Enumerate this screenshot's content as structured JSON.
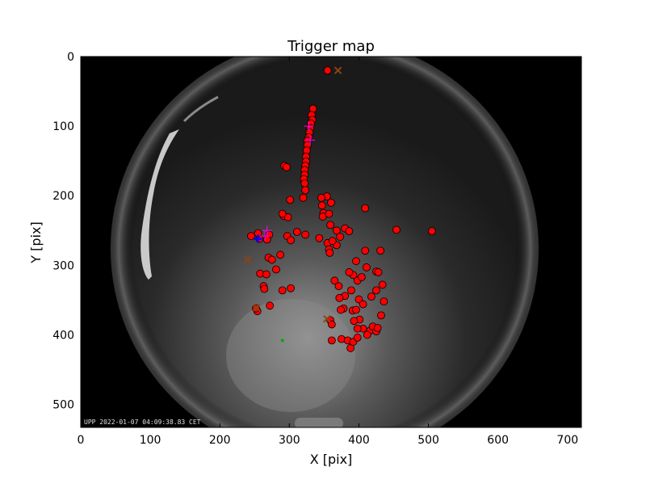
{
  "chart_data": {
    "type": "scatter",
    "title": "Trigger map",
    "xlabel": "X [pix]",
    "ylabel": "Y [pix]",
    "xlim": [
      0,
      720
    ],
    "ylim": [
      0,
      533
    ],
    "y_inverted": true,
    "grid": false,
    "xticks": [
      0,
      100,
      200,
      300,
      400,
      500,
      600,
      700
    ],
    "yticks": [
      0,
      100,
      200,
      300,
      400,
      500
    ],
    "background_image": "all-sky camera fisheye frame (grayscale)",
    "timestamp_caption": "UPP 2022-01-07 04:09:38.83 CET",
    "colors": {
      "trigger_point": "#ff0000",
      "outline": "#000000",
      "cross": "#8b4513",
      "green_dot": "#00aa00",
      "blue_marker": "#0000ff",
      "magenta_marker": "#ff00ff"
    },
    "series": [
      {
        "marker": "circle",
        "points": [
          [
            355,
            20
          ],
          [
            334,
            75
          ],
          [
            332,
            84
          ],
          [
            333,
            91
          ],
          [
            331,
            96
          ],
          [
            330,
            103
          ],
          [
            329,
            109
          ],
          [
            328,
            116
          ],
          [
            326,
            121
          ],
          [
            326,
            127
          ],
          [
            325,
            135
          ],
          [
            324,
            144
          ],
          [
            324,
            151
          ],
          [
            323,
            157
          ],
          [
            322,
            163
          ],
          [
            322,
            170
          ],
          [
            321,
            176
          ],
          [
            322,
            182
          ],
          [
            293,
            157
          ],
          [
            296,
            159
          ],
          [
            323,
            192
          ],
          [
            320,
            203
          ],
          [
            301,
            206
          ],
          [
            360,
            210
          ],
          [
            354,
            201
          ],
          [
            346,
            203
          ],
          [
            347,
            214
          ],
          [
            349,
            225
          ],
          [
            348,
            230
          ],
          [
            357,
            226
          ],
          [
            359,
            242
          ],
          [
            409,
            218
          ],
          [
            292,
            229
          ],
          [
            298,
            231
          ],
          [
            290,
            226
          ],
          [
            311,
            252
          ],
          [
            323,
            256
          ],
          [
            297,
            258
          ],
          [
            302,
            264
          ],
          [
            343,
            261
          ],
          [
            355,
            268
          ],
          [
            357,
            277
          ],
          [
            358,
            282
          ],
          [
            368,
            250
          ],
          [
            373,
            259
          ],
          [
            380,
            247
          ],
          [
            386,
            251
          ],
          [
            368,
            271
          ],
          [
            362,
            265
          ],
          [
            454,
            249
          ],
          [
            505,
            251
          ],
          [
            409,
            279
          ],
          [
            431,
            279
          ],
          [
            245,
            258
          ],
          [
            257,
            262
          ],
          [
            271,
            256
          ],
          [
            268,
            263
          ],
          [
            255,
            254
          ],
          [
            270,
            289
          ],
          [
            275,
            292
          ],
          [
            287,
            285
          ],
          [
            281,
            306
          ],
          [
            258,
            312
          ],
          [
            267,
            313
          ],
          [
            263,
            330
          ],
          [
            264,
            334
          ],
          [
            290,
            336
          ],
          [
            302,
            333
          ],
          [
            272,
            358
          ],
          [
            254,
            366
          ],
          [
            252,
            362
          ],
          [
            411,
            303
          ],
          [
            396,
            294
          ],
          [
            398,
            322
          ],
          [
            392,
            314
          ],
          [
            386,
            310
          ],
          [
            371,
            330
          ],
          [
            389,
            336
          ],
          [
            380,
            344
          ],
          [
            400,
            349
          ],
          [
            425,
            309
          ],
          [
            428,
            310
          ],
          [
            434,
            328
          ],
          [
            436,
            352
          ],
          [
            425,
            336
          ],
          [
            418,
            345
          ],
          [
            404,
            317
          ],
          [
            391,
            365
          ],
          [
            378,
            362
          ],
          [
            396,
            364
          ],
          [
            401,
            378
          ],
          [
            393,
            380
          ],
          [
            406,
            391
          ],
          [
            398,
            391
          ],
          [
            416,
            394
          ],
          [
            412,
            400
          ],
          [
            420,
            388
          ],
          [
            425,
            395
          ],
          [
            432,
            372
          ],
          [
            427,
            390
          ],
          [
            359,
            379
          ],
          [
            361,
            385
          ],
          [
            361,
            408
          ],
          [
            375,
            406
          ],
          [
            384,
            408
          ],
          [
            388,
            419
          ],
          [
            392,
            410
          ],
          [
            398,
            404
          ],
          [
            374,
            364
          ],
          [
            372,
            347
          ],
          [
            365,
            322
          ],
          [
            406,
            356
          ]
        ]
      },
      {
        "marker": "x-cross",
        "points": [
          [
            370,
            20
          ],
          [
            240,
            292
          ],
          [
            253,
            361
          ],
          [
            354,
            377
          ]
        ]
      },
      {
        "marker": "small-dot-green",
        "points": [
          [
            290,
            408
          ]
        ]
      },
      {
        "marker": "plus-blue",
        "points": [
          [
            255,
            262
          ]
        ]
      },
      {
        "marker": "plus-magenta",
        "points": [
          [
            265,
            258
          ],
          [
            268,
            250
          ],
          [
            330,
            120
          ],
          [
            328,
            100
          ]
        ]
      }
    ]
  }
}
